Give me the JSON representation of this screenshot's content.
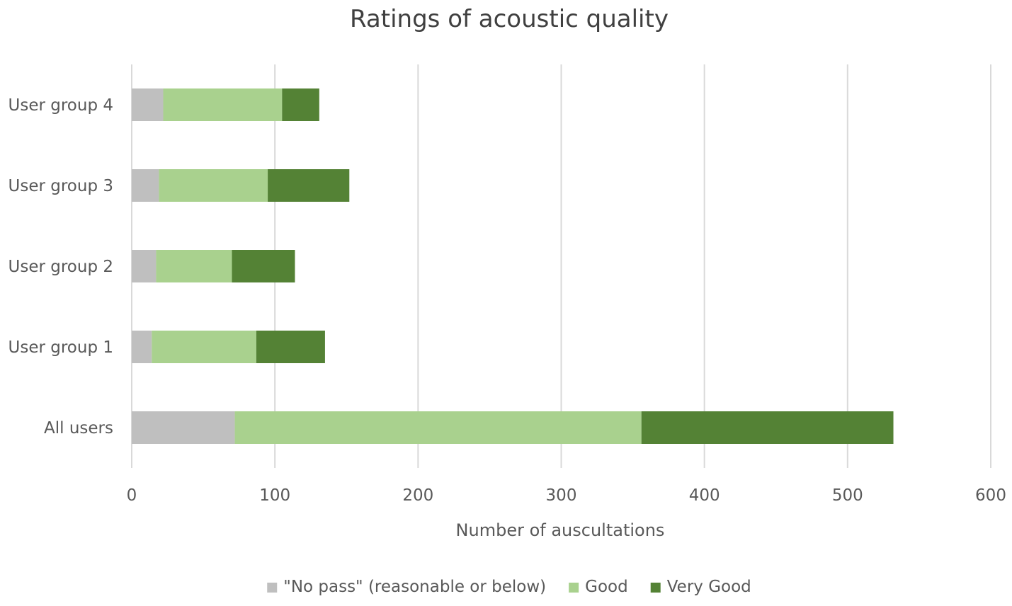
{
  "chart_data": {
    "type": "bar",
    "orientation": "horizontal",
    "stacked": true,
    "title": "Ratings of acoustic quality",
    "xlabel": "Number of auscultations",
    "ylabel": "",
    "xlim": [
      0,
      600
    ],
    "xticks": [
      0,
      100,
      200,
      300,
      400,
      500,
      600
    ],
    "grid": "vertical major gridlines",
    "legend_position": "bottom",
    "categories": [
      "User group 4",
      "User group 3",
      "User group 2",
      "User group 1",
      "All users"
    ],
    "series": [
      {
        "name": "\"No pass\" (reasonable or below)",
        "color": "#bfbfbf",
        "values": [
          22,
          19,
          17,
          14,
          72
        ]
      },
      {
        "name": "Good",
        "color": "#a9d18e",
        "values": [
          83,
          76,
          53,
          73,
          284
        ]
      },
      {
        "name": "Very Good",
        "color": "#548235",
        "values": [
          26,
          57,
          44,
          48,
          176
        ]
      }
    ]
  }
}
